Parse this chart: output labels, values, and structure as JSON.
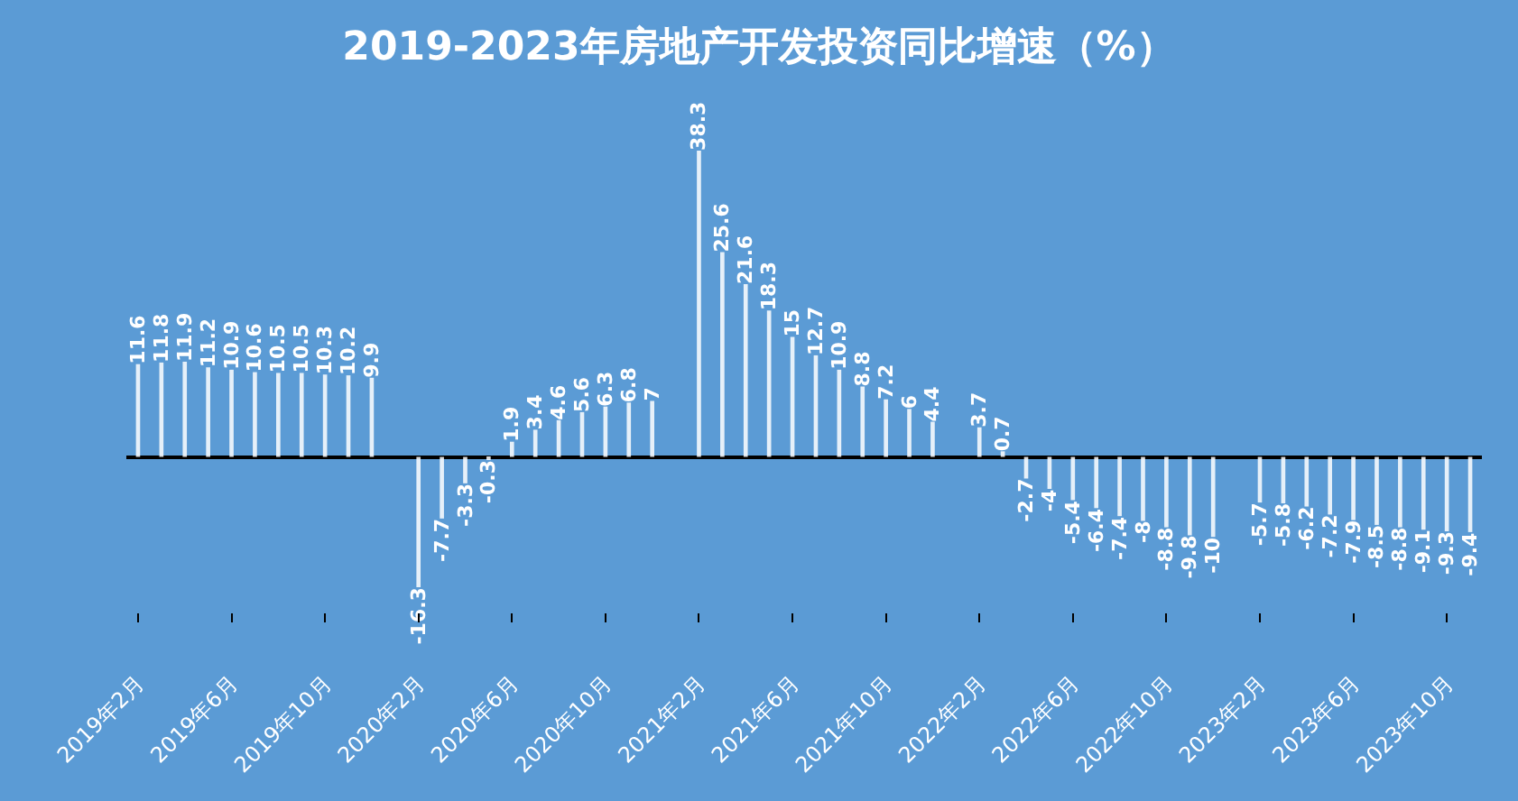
{
  "chart_data": {
    "type": "bar",
    "title": "2019-2023年房地产开发投资同比增速（%）",
    "categories": [
      "2019年2月",
      null,
      null,
      null,
      "2019年6月",
      null,
      null,
      null,
      "2019年10月",
      null,
      null,
      null,
      "2020年2月",
      null,
      null,
      null,
      "2020年6月",
      null,
      null,
      null,
      "2020年10月",
      null,
      null,
      null,
      "2021年2月",
      null,
      null,
      null,
      "2021年6月",
      null,
      null,
      null,
      "2021年10月",
      null,
      null,
      null,
      "2022年2月",
      null,
      null,
      null,
      "2022年6月",
      null,
      null,
      null,
      "2022年10月",
      null,
      null,
      null,
      "2023年2月",
      null,
      null,
      null,
      "2023年6月",
      null,
      null,
      null,
      "2023年10月",
      null
    ],
    "series": [
      {
        "color": "#ffffff",
        "values": [
          11.6,
          11.8,
          11.9,
          11.2,
          10.9,
          10.6,
          10.5,
          10.5,
          10.3,
          10.2,
          9.9,
          null,
          -16.3,
          -7.7,
          -3.3,
          -0.3,
          1.9,
          3.4,
          4.6,
          5.6,
          6.3,
          6.8,
          7.0,
          null,
          38.3,
          25.6,
          21.6,
          18.3,
          15.0,
          12.7,
          10.9,
          8.8,
          7.2,
          6.0,
          4.4,
          null,
          3.7,
          0.7,
          -2.7,
          -4.0,
          -5.4,
          -6.4,
          -7.4,
          -8.0,
          -8.8,
          -9.8,
          -10.0,
          null,
          -5.7,
          -5.8,
          -6.2,
          -7.2,
          -7.9,
          -8.5,
          -8.8,
          -9.1,
          -9.3,
          -9.4
        ]
      }
    ],
    "data_labels": true,
    "tick_labels": "x",
    "grid": false
  }
}
